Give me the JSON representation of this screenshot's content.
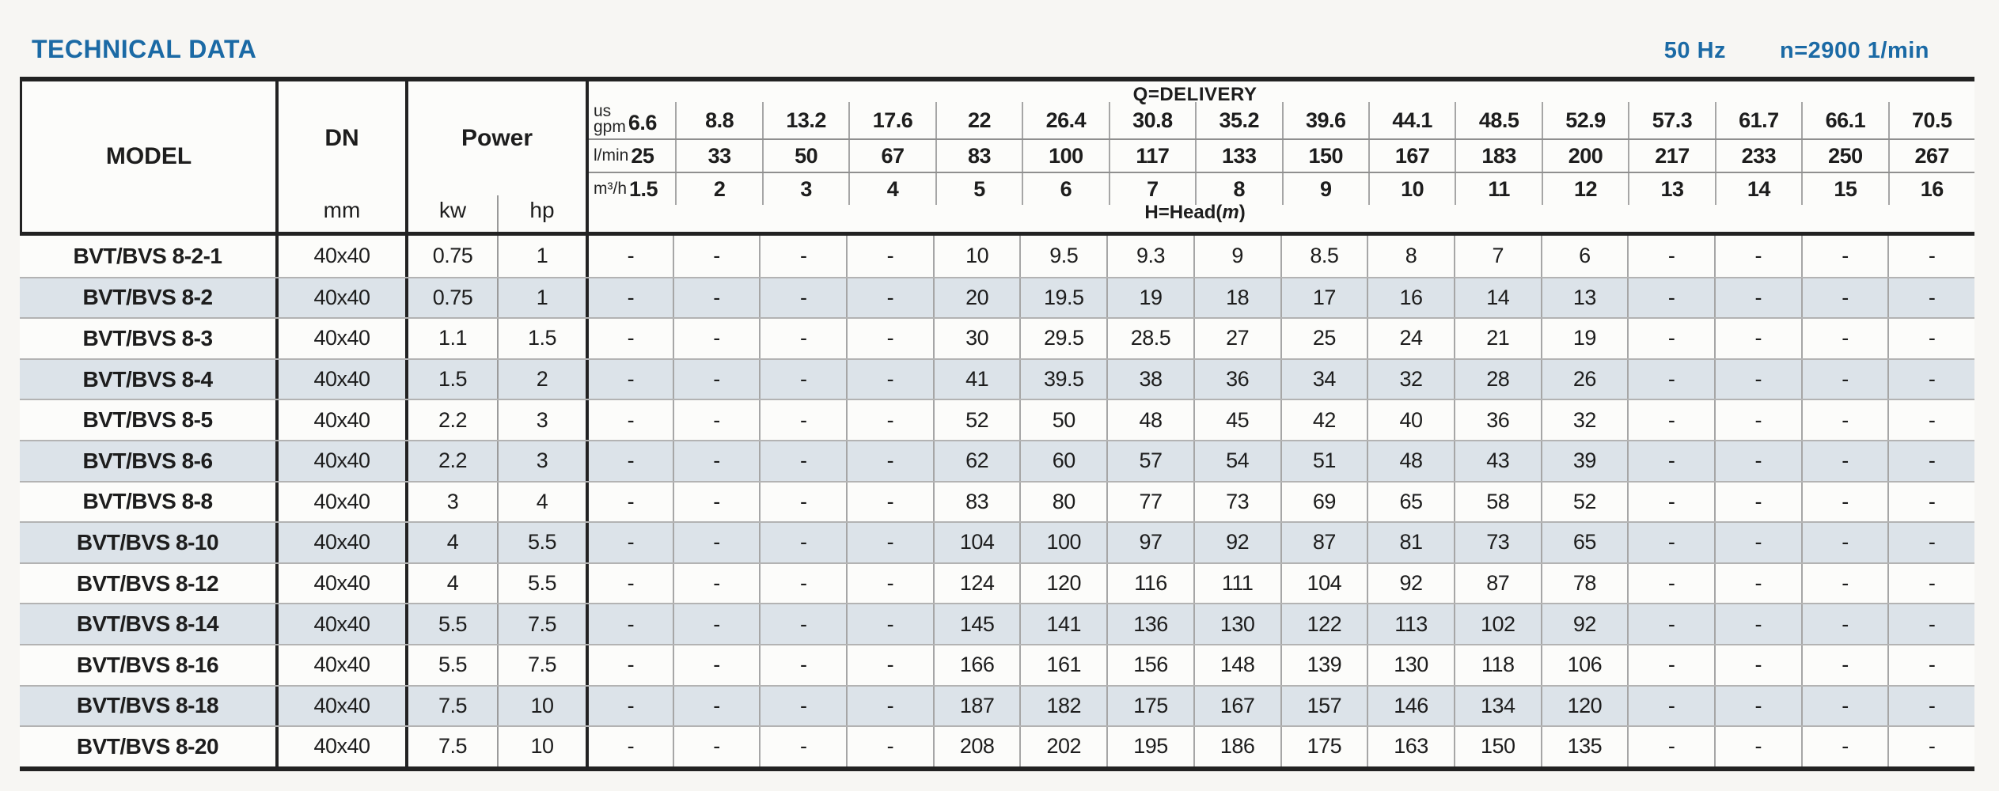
{
  "page": {
    "title": "TECHNICAL DATA",
    "frequency": "50 Hz",
    "speed": "n=2900 1/min"
  },
  "colors": {
    "accent_blue": "#1b6aa5",
    "row_shade": "#dce3e9",
    "text": "#1d1d1d"
  },
  "table": {
    "header": {
      "model": "MODEL",
      "dn": "DN",
      "dn_unit": "mm",
      "power": "Power",
      "power_unit_kw": "kw",
      "power_unit_hp": "hp",
      "delivery_title": "Q=DELIVERY",
      "head_title_prefix": "H=Head(",
      "head_title_unit": "m",
      "head_title_suffix": ")",
      "flow_rows": [
        {
          "label_lines": [
            "us",
            "gpm"
          ],
          "values": [
            "6.6",
            "8.8",
            "13.2",
            "17.6",
            "22",
            "26.4",
            "30.8",
            "35.2",
            "39.6",
            "44.1",
            "48.5",
            "52.9",
            "57.3",
            "61.7",
            "66.1",
            "70.5"
          ]
        },
        {
          "label_lines": [
            "l/min"
          ],
          "values": [
            "25",
            "33",
            "50",
            "67",
            "83",
            "100",
            "117",
            "133",
            "150",
            "167",
            "183",
            "200",
            "217",
            "233",
            "250",
            "267"
          ]
        },
        {
          "label_lines": [
            "m³/h"
          ],
          "values": [
            "1.5",
            "2",
            "3",
            "4",
            "5",
            "6",
            "7",
            "8",
            "9",
            "10",
            "11",
            "12",
            "13",
            "14",
            "15",
            "16"
          ]
        }
      ]
    },
    "rows": [
      {
        "model": "BVT/BVS 8-2-1",
        "dn": "40x40",
        "kw": "0.75",
        "hp": "1",
        "head": [
          "-",
          "-",
          "-",
          "-",
          "10",
          "9.5",
          "9.3",
          "9",
          "8.5",
          "8",
          "7",
          "6",
          "-",
          "-",
          "-",
          "-"
        ]
      },
      {
        "model": "BVT/BVS 8-2",
        "dn": "40x40",
        "kw": "0.75",
        "hp": "1",
        "head": [
          "-",
          "-",
          "-",
          "-",
          "20",
          "19.5",
          "19",
          "18",
          "17",
          "16",
          "14",
          "13",
          "-",
          "-",
          "-",
          "-"
        ]
      },
      {
        "model": "BVT/BVS 8-3",
        "dn": "40x40",
        "kw": "1.1",
        "hp": "1.5",
        "head": [
          "-",
          "-",
          "-",
          "-",
          "30",
          "29.5",
          "28.5",
          "27",
          "25",
          "24",
          "21",
          "19",
          "-",
          "-",
          "-",
          "-"
        ]
      },
      {
        "model": "BVT/BVS 8-4",
        "dn": "40x40",
        "kw": "1.5",
        "hp": "2",
        "head": [
          "-",
          "-",
          "-",
          "-",
          "41",
          "39.5",
          "38",
          "36",
          "34",
          "32",
          "28",
          "26",
          "-",
          "-",
          "-",
          "-"
        ]
      },
      {
        "model": "BVT/BVS 8-5",
        "dn": "40x40",
        "kw": "2.2",
        "hp": "3",
        "head": [
          "-",
          "-",
          "-",
          "-",
          "52",
          "50",
          "48",
          "45",
          "42",
          "40",
          "36",
          "32",
          "-",
          "-",
          "-",
          "-"
        ]
      },
      {
        "model": "BVT/BVS 8-6",
        "dn": "40x40",
        "kw": "2.2",
        "hp": "3",
        "head": [
          "-",
          "-",
          "-",
          "-",
          "62",
          "60",
          "57",
          "54",
          "51",
          "48",
          "43",
          "39",
          "-",
          "-",
          "-",
          "-"
        ]
      },
      {
        "model": "BVT/BVS 8-8",
        "dn": "40x40",
        "kw": "3",
        "hp": "4",
        "head": [
          "-",
          "-",
          "-",
          "-",
          "83",
          "80",
          "77",
          "73",
          "69",
          "65",
          "58",
          "52",
          "-",
          "-",
          "-",
          "-"
        ]
      },
      {
        "model": "BVT/BVS 8-10",
        "dn": "40x40",
        "kw": "4",
        "hp": "5.5",
        "head": [
          "-",
          "-",
          "-",
          "-",
          "104",
          "100",
          "97",
          "92",
          "87",
          "81",
          "73",
          "65",
          "-",
          "-",
          "-",
          "-"
        ]
      },
      {
        "model": "BVT/BVS 8-12",
        "dn": "40x40",
        "kw": "4",
        "hp": "5.5",
        "head": [
          "-",
          "-",
          "-",
          "-",
          "124",
          "120",
          "116",
          "111",
          "104",
          "92",
          "87",
          "78",
          "-",
          "-",
          "-",
          "-"
        ]
      },
      {
        "model": "BVT/BVS 8-14",
        "dn": "40x40",
        "kw": "5.5",
        "hp": "7.5",
        "head": [
          "-",
          "-",
          "-",
          "-",
          "145",
          "141",
          "136",
          "130",
          "122",
          "113",
          "102",
          "92",
          "-",
          "-",
          "-",
          "-"
        ]
      },
      {
        "model": "BVT/BVS 8-16",
        "dn": "40x40",
        "kw": "5.5",
        "hp": "7.5",
        "head": [
          "-",
          "-",
          "-",
          "-",
          "166",
          "161",
          "156",
          "148",
          "139",
          "130",
          "118",
          "106",
          "-",
          "-",
          "-",
          "-"
        ]
      },
      {
        "model": "BVT/BVS 8-18",
        "dn": "40x40",
        "kw": "7.5",
        "hp": "10",
        "head": [
          "-",
          "-",
          "-",
          "-",
          "187",
          "182",
          "175",
          "167",
          "157",
          "146",
          "134",
          "120",
          "-",
          "-",
          "-",
          "-"
        ]
      },
      {
        "model": "BVT/BVS 8-20",
        "dn": "40x40",
        "kw": "7.5",
        "hp": "10",
        "head": [
          "-",
          "-",
          "-",
          "-",
          "208",
          "202",
          "195",
          "186",
          "175",
          "163",
          "150",
          "135",
          "-",
          "-",
          "-",
          "-"
        ]
      }
    ]
  }
}
